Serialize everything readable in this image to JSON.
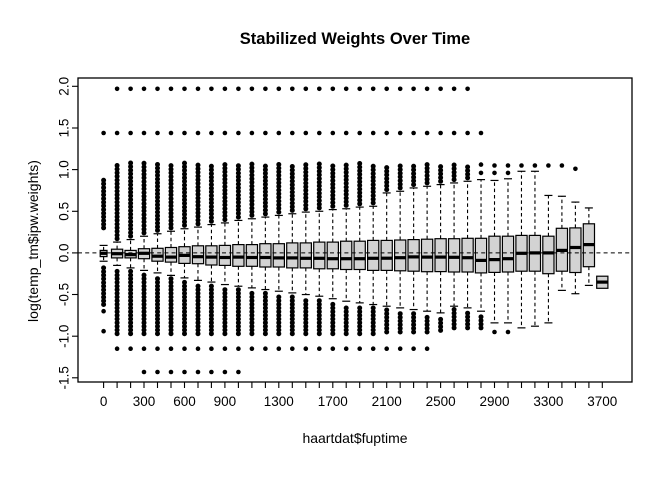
{
  "figure": {
    "background": "#ffffff"
  },
  "chart_data": {
    "type": "boxplot",
    "title": "Stabilized Weights Over Time",
    "xlabel": "haartdat$fuptime",
    "ylabel": "log(temp_tm$ipw.weights)",
    "grid": false,
    "legend": "none",
    "box_fill": "#d3d3d3",
    "line_color": "#000000",
    "reference_line": {
      "y": 0,
      "style": "dashed"
    },
    "xlim": [
      -190,
      3920
    ],
    "ylim": [
      -1.55,
      2.1
    ],
    "x_minor_tick_step": 100,
    "x_tick_labels": [
      {
        "pos": 0,
        "label": "0"
      },
      {
        "pos": 300,
        "label": "300"
      },
      {
        "pos": 600,
        "label": "600"
      },
      {
        "pos": 900,
        "label": "900"
      },
      {
        "pos": 1300,
        "label": "1300"
      },
      {
        "pos": 1700,
        "label": "1700"
      },
      {
        "pos": 2100,
        "label": "2100"
      },
      {
        "pos": 2500,
        "label": "2500"
      },
      {
        "pos": 2900,
        "label": "2900"
      },
      {
        "pos": 3300,
        "label": "3300"
      },
      {
        "pos": 3700,
        "label": "3700"
      }
    ],
    "y_tick_labels": [
      {
        "value": -1.5,
        "label": "-1.5"
      },
      {
        "value": -1.0,
        "label": "-1.0"
      },
      {
        "value": -0.5,
        "label": "-0.5"
      },
      {
        "value": 0.0,
        "label": "0.0"
      },
      {
        "value": 0.5,
        "label": "0.5"
      },
      {
        "value": 1.0,
        "label": "1.0"
      },
      {
        "value": 1.5,
        "label": "1.5"
      },
      {
        "value": 2.0,
        "label": "2.0"
      }
    ],
    "boxes": [
      {
        "pos": 0,
        "q1": -0.045,
        "median": -0.005,
        "q3": 0.03,
        "whisker_low": -0.1,
        "whisker_high": 0.09,
        "outliers_above_range": [
          0.3,
          0.9
        ],
        "outliers_above": [
          1.44
        ],
        "outliers_below_range": [
          -0.62,
          -0.18
        ],
        "outliers_below": [
          -0.7,
          -0.94
        ]
      },
      {
        "pos": 100,
        "q1": -0.06,
        "median": -0.01,
        "q3": 0.045,
        "whisker_low": -0.15,
        "whisker_high": 0.13,
        "outliers_above_range": [
          0.17,
          1.08
        ],
        "outliers_above": [
          1.97,
          1.44
        ],
        "outliers_below_range": [
          -0.97,
          -0.19
        ],
        "outliers_below": [
          -1.15
        ]
      },
      {
        "pos": 200,
        "q1": -0.06,
        "median": -0.02,
        "q3": 0.03,
        "whisker_low": -0.18,
        "whisker_high": 0.16,
        "outliers_above_range": [
          0.2,
          1.08
        ],
        "outliers_above": [
          1.97,
          1.44
        ],
        "outliers_below_range": [
          -0.97,
          -0.22
        ],
        "outliers_below": [
          -1.15
        ]
      },
      {
        "pos": 300,
        "q1": -0.07,
        "median": -0.005,
        "q3": 0.05,
        "whisker_low": -0.21,
        "whisker_high": 0.2,
        "outliers_above_range": [
          0.24,
          1.08
        ],
        "outliers_above": [
          1.97,
          1.44
        ],
        "outliers_below_range": [
          -0.97,
          -0.25
        ],
        "outliers_below": [
          -1.15,
          -1.43
        ]
      },
      {
        "pos": 400,
        "q1": -0.1,
        "median": -0.04,
        "q3": 0.055,
        "whisker_low": -0.24,
        "whisker_high": 0.23,
        "outliers_above_range": [
          0.27,
          1.08
        ],
        "outliers_above": [
          1.97,
          1.44
        ],
        "outliers_below_range": [
          -0.97,
          -0.28
        ],
        "outliers_below": [
          -1.15,
          -1.43
        ]
      },
      {
        "pos": 500,
        "q1": -0.11,
        "median": -0.05,
        "q3": 0.065,
        "whisker_low": -0.27,
        "whisker_high": 0.26,
        "outliers_above_range": [
          0.3,
          1.08
        ],
        "outliers_above": [
          1.97,
          1.44
        ],
        "outliers_below_range": [
          -0.97,
          -0.31
        ],
        "outliers_below": [
          -1.15,
          -1.43
        ]
      },
      {
        "pos": 600,
        "q1": -0.125,
        "median": -0.03,
        "q3": 0.075,
        "whisker_low": -0.3,
        "whisker_high": 0.29,
        "outliers_above_range": [
          0.33,
          1.08
        ],
        "outliers_above": [
          1.97,
          1.44
        ],
        "outliers_below_range": [
          -0.97,
          -0.34
        ],
        "outliers_below": [
          -1.15,
          -1.43
        ]
      },
      {
        "pos": 700,
        "q1": -0.13,
        "median": -0.045,
        "q3": 0.085,
        "whisker_low": -0.33,
        "whisker_high": 0.31,
        "outliers_above_range": [
          0.35,
          1.08
        ],
        "outliers_above": [
          1.97,
          1.44
        ],
        "outliers_below_range": [
          -0.97,
          -0.37
        ],
        "outliers_below": [
          -1.15,
          -1.43
        ]
      },
      {
        "pos": 800,
        "q1": -0.145,
        "median": -0.05,
        "q3": 0.085,
        "whisker_low": -0.35,
        "whisker_high": 0.34,
        "outliers_above_range": [
          0.38,
          1.08
        ],
        "outliers_above": [
          1.97,
          1.44
        ],
        "outliers_below_range": [
          -0.97,
          -0.39
        ],
        "outliers_below": [
          -1.15,
          -1.43
        ]
      },
      {
        "pos": 900,
        "q1": -0.15,
        "median": -0.055,
        "q3": 0.09,
        "whisker_low": -0.38,
        "whisker_high": 0.36,
        "outliers_above_range": [
          0.4,
          1.08
        ],
        "outliers_above": [
          1.97,
          1.44
        ],
        "outliers_below_range": [
          -0.97,
          -0.42
        ],
        "outliers_below": [
          -1.15,
          -1.43
        ]
      },
      {
        "pos": 1000,
        "q1": -0.16,
        "median": -0.05,
        "q3": 0.1,
        "whisker_low": -0.4,
        "whisker_high": 0.39,
        "outliers_above_range": [
          0.43,
          1.08
        ],
        "outliers_above": [
          1.97,
          1.44
        ],
        "outliers_below_range": [
          -0.97,
          -0.44
        ],
        "outliers_below": [
          -1.15,
          -1.43
        ]
      },
      {
        "pos": 1100,
        "q1": -0.16,
        "median": -0.055,
        "q3": 0.1,
        "whisker_low": -0.42,
        "whisker_high": 0.41,
        "outliers_above_range": [
          0.45,
          1.08
        ],
        "outliers_above": [
          1.97,
          1.44
        ],
        "outliers_below_range": [
          -0.97,
          -0.46
        ],
        "outliers_below": [
          -1.15
        ]
      },
      {
        "pos": 1200,
        "q1": -0.17,
        "median": -0.055,
        "q3": 0.11,
        "whisker_low": -0.44,
        "whisker_high": 0.43,
        "outliers_above_range": [
          0.47,
          1.08
        ],
        "outliers_above": [
          1.97,
          1.44
        ],
        "outliers_below_range": [
          -0.97,
          -0.48
        ],
        "outliers_below": [
          -1.15
        ]
      },
      {
        "pos": 1300,
        "q1": -0.17,
        "median": -0.06,
        "q3": 0.11,
        "whisker_low": -0.46,
        "whisker_high": 0.45,
        "outliers_above_range": [
          0.49,
          1.08
        ],
        "outliers_above": [
          1.97,
          1.44
        ],
        "outliers_below_range": [
          -0.97,
          -0.5
        ],
        "outliers_below": [
          -1.15
        ]
      },
      {
        "pos": 1400,
        "q1": -0.18,
        "median": -0.06,
        "q3": 0.12,
        "whisker_low": -0.48,
        "whisker_high": 0.47,
        "outliers_above_range": [
          0.51,
          1.08
        ],
        "outliers_above": [
          1.97,
          1.44
        ],
        "outliers_below_range": [
          -0.97,
          -0.52
        ],
        "outliers_below": [
          -1.15
        ]
      },
      {
        "pos": 1500,
        "q1": -0.18,
        "median": -0.065,
        "q3": 0.12,
        "whisker_low": -0.5,
        "whisker_high": 0.49,
        "outliers_above_range": [
          0.53,
          1.08
        ],
        "outliers_above": [
          1.97,
          1.44
        ],
        "outliers_below_range": [
          -0.97,
          -0.54
        ],
        "outliers_below": [
          -1.15
        ]
      },
      {
        "pos": 1600,
        "q1": -0.19,
        "median": -0.065,
        "q3": 0.13,
        "whisker_low": -0.52,
        "whisker_high": 0.5,
        "outliers_above_range": [
          0.54,
          1.08
        ],
        "outliers_above": [
          1.97,
          1.44
        ],
        "outliers_below_range": [
          -0.97,
          -0.56
        ],
        "outliers_below": [
          -1.15
        ]
      },
      {
        "pos": 1700,
        "q1": -0.19,
        "median": -0.07,
        "q3": 0.13,
        "whisker_low": -0.55,
        "whisker_high": 0.52,
        "outliers_above_range": [
          0.56,
          1.08
        ],
        "outliers_above": [
          1.97,
          1.44
        ],
        "outliers_below_range": [
          -0.97,
          -0.59
        ],
        "outliers_below": [
          -1.15
        ]
      },
      {
        "pos": 1800,
        "q1": -0.2,
        "median": -0.07,
        "q3": 0.14,
        "whisker_low": -0.58,
        "whisker_high": 0.53,
        "outliers_above_range": [
          0.57,
          1.08
        ],
        "outliers_above": [
          1.97,
          1.44
        ],
        "outliers_below_range": [
          -0.97,
          -0.62
        ],
        "outliers_below": [
          -1.15
        ]
      },
      {
        "pos": 1900,
        "q1": -0.2,
        "median": -0.07,
        "q3": 0.14,
        "whisker_low": -0.6,
        "whisker_high": 0.55,
        "outliers_above_range": [
          0.59,
          1.08
        ],
        "outliers_above": [
          1.97,
          1.44
        ],
        "outliers_below_range": [
          -0.97,
          -0.64
        ],
        "outliers_below": [
          -1.15
        ]
      },
      {
        "pos": 2000,
        "q1": -0.21,
        "median": -0.065,
        "q3": 0.15,
        "whisker_low": -0.62,
        "whisker_high": 0.56,
        "outliers_above_range": [
          0.6,
          1.07
        ],
        "outliers_above": [
          1.97,
          1.44
        ],
        "outliers_below_range": [
          -0.97,
          -0.66
        ],
        "outliers_below": [
          -1.15
        ]
      },
      {
        "pos": 2100,
        "q1": -0.21,
        "median": -0.063,
        "q3": 0.15,
        "whisker_low": -0.64,
        "whisker_high": 0.72,
        "outliers_above_range": [
          0.76,
          1.06
        ],
        "outliers_above": [
          1.97,
          1.44
        ],
        "outliers_below_range": [
          -0.95,
          -0.68
        ],
        "outliers_below": [
          -1.15
        ]
      },
      {
        "pos": 2200,
        "q1": -0.215,
        "median": -0.058,
        "q3": 0.155,
        "whisker_low": -0.66,
        "whisker_high": 0.74,
        "outliers_above_range": [
          0.78,
          1.06
        ],
        "outliers_above": [
          1.97,
          1.44
        ],
        "outliers_below_range": [
          -0.95,
          -0.7
        ],
        "outliers_below": [
          -1.15
        ]
      },
      {
        "pos": 2300,
        "q1": -0.22,
        "median": -0.048,
        "q3": 0.16,
        "whisker_low": -0.68,
        "whisker_high": 0.78,
        "outliers_above_range": [
          0.82,
          1.06
        ],
        "outliers_above": [
          1.97,
          1.44
        ],
        "outliers_below_range": [
          -0.95,
          -0.72
        ],
        "outliers_below": [
          -1.15
        ]
      },
      {
        "pos": 2400,
        "q1": -0.225,
        "median": -0.05,
        "q3": 0.165,
        "whisker_low": -0.7,
        "whisker_high": 0.8,
        "outliers_above_range": [
          0.84,
          1.06
        ],
        "outliers_above": [
          1.97,
          1.44
        ],
        "outliers_below_range": [
          -0.95,
          -0.74
        ],
        "outliers_below": [
          -1.15
        ]
      },
      {
        "pos": 2500,
        "q1": -0.225,
        "median": -0.05,
        "q3": 0.17,
        "whisker_low": -0.72,
        "whisker_high": 0.82,
        "outliers_above_range": [
          0.86,
          1.06
        ],
        "outliers_above": [
          1.97,
          1.44
        ],
        "outliers_below_range": [
          -0.93,
          -0.76
        ],
        "outliers_below": []
      },
      {
        "pos": 2600,
        "q1": -0.23,
        "median": -0.053,
        "q3": 0.17,
        "whisker_low": -0.64,
        "whisker_high": 0.84,
        "outliers_above_range": [
          0.88,
          1.06
        ],
        "outliers_above": [
          1.97,
          1.44
        ],
        "outliers_below_range": [
          -0.9,
          -0.68
        ],
        "outliers_below": []
      },
      {
        "pos": 2700,
        "q1": -0.23,
        "median": -0.058,
        "q3": 0.175,
        "whisker_low": -0.66,
        "whisker_high": 0.86,
        "outliers_above_range": [
          0.9,
          1.06
        ],
        "outliers_above": [
          1.97,
          1.44
        ],
        "outliers_below_range": [
          -0.9,
          -0.7
        ],
        "outliers_below": []
      },
      {
        "pos": 2800,
        "q1": -0.24,
        "median": -0.09,
        "q3": 0.175,
        "whisker_low": -0.7,
        "whisker_high": 0.88,
        "outliers_above_range": null,
        "outliers_above": [
          1.44,
          1.06,
          0.96
        ],
        "outliers_below_range": [
          -0.9,
          -0.74
        ],
        "outliers_below": []
      },
      {
        "pos": 2900,
        "q1": -0.235,
        "median": -0.08,
        "q3": 0.2,
        "whisker_low": -0.84,
        "whisker_high": 0.87,
        "outliers_above_range": null,
        "outliers_above": [
          1.05,
          0.96
        ],
        "outliers_below_range": null,
        "outliers_below": [
          -0.95
        ]
      },
      {
        "pos": 3000,
        "q1": -0.23,
        "median": -0.07,
        "q3": 0.2,
        "whisker_low": -0.84,
        "whisker_high": 0.89,
        "outliers_above_range": null,
        "outliers_above": [
          1.05,
          0.96
        ],
        "outliers_below_range": null,
        "outliers_below": [
          -0.95
        ]
      },
      {
        "pos": 3100,
        "q1": -0.22,
        "median": -0.005,
        "q3": 0.21,
        "whisker_low": -0.9,
        "whisker_high": 0.98,
        "outliers_above_range": null,
        "outliers_above": [
          1.05
        ],
        "outliers_below_range": null,
        "outliers_below": []
      },
      {
        "pos": 3200,
        "q1": -0.22,
        "median": 0.0,
        "q3": 0.21,
        "whisker_low": -0.88,
        "whisker_high": 0.98,
        "outliers_above_range": null,
        "outliers_above": [
          1.05
        ],
        "outliers_below_range": null,
        "outliers_below": []
      },
      {
        "pos": 3300,
        "q1": -0.25,
        "median": 0.0,
        "q3": 0.2,
        "whisker_low": -0.84,
        "whisker_high": 0.69,
        "outliers_above_range": null,
        "outliers_above": [
          1.05
        ],
        "outliers_below_range": null,
        "outliers_below": []
      },
      {
        "pos": 3400,
        "q1": -0.22,
        "median": 0.03,
        "q3": 0.295,
        "whisker_low": -0.45,
        "whisker_high": 0.68,
        "outliers_above_range": null,
        "outliers_above": [
          1.05
        ],
        "outliers_below_range": null,
        "outliers_below": []
      },
      {
        "pos": 3500,
        "q1": -0.235,
        "median": 0.065,
        "q3": 0.3,
        "whisker_low": -0.49,
        "whisker_high": 0.61,
        "outliers_above_range": null,
        "outliers_above": [
          1.01
        ],
        "outliers_below_range": null,
        "outliers_below": []
      },
      {
        "pos": 3600,
        "q1": -0.165,
        "median": 0.1,
        "q3": 0.35,
        "whisker_low": -0.39,
        "whisker_high": 0.54,
        "outliers_above_range": null,
        "outliers_above": [],
        "outliers_below_range": null,
        "outliers_below": []
      },
      {
        "pos": 3700,
        "q1": -0.425,
        "median": -0.35,
        "q3": -0.28,
        "whisker_low": null,
        "whisker_high": null,
        "outliers_above_range": null,
        "outliers_above": [],
        "outliers_below_range": null,
        "outliers_below": []
      }
    ]
  }
}
